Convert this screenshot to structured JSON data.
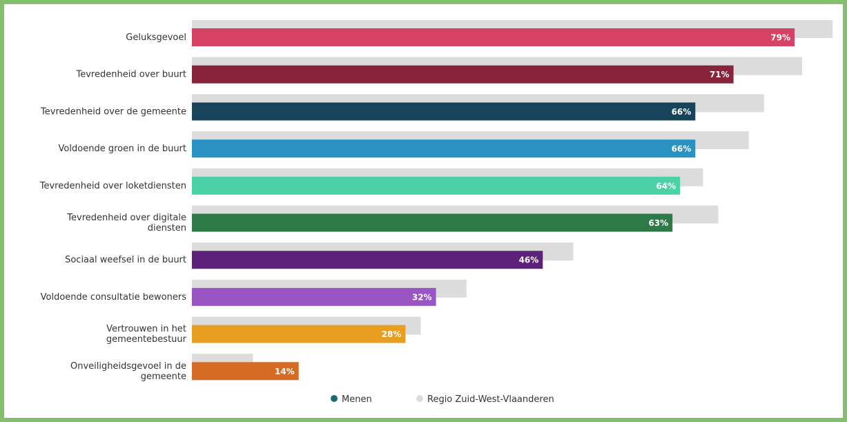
{
  "chart_data": {
    "type": "bar",
    "orientation": "horizontal",
    "categories": [
      [
        "Geluksgevoel"
      ],
      [
        "Tevredenheid over buurt"
      ],
      [
        "Tevredenheid over de gemeente"
      ],
      [
        "Voldoende groen in de buurt"
      ],
      [
        "Tevredenheid over loketdiensten"
      ],
      [
        "Tevredenheid over digitale",
        "diensten"
      ],
      [
        "Sociaal weefsel in de buurt"
      ],
      [
        "Voldoende consultatie bewoners"
      ],
      [
        "Vertrouwen in het",
        "gemeentebestuur"
      ],
      [
        "Onveiligheidsgevoel in de",
        "gemeente"
      ]
    ],
    "series": [
      {
        "name": "Menen",
        "values": [
          79,
          71,
          66,
          66,
          64,
          63,
          46,
          32,
          28,
          14
        ],
        "value_labels": [
          "79%",
          "71%",
          "66%",
          "66%",
          "64%",
          "63%",
          "46%",
          "32%",
          "28%",
          "14%"
        ],
        "colors": [
          "#d64264",
          "#87233a",
          "#17435b",
          "#2a92c2",
          "#4bd1a6",
          "#2d7a47",
          "#5c2279",
          "#9a55c4",
          "#e89f21",
          "#d46c25"
        ]
      },
      {
        "name": "Regio Zuid-West-Vlaanderen",
        "values": [
          84,
          80,
          75,
          73,
          67,
          69,
          50,
          36,
          30,
          8
        ],
        "color": "#dcdcdc"
      }
    ],
    "xlim": [
      0,
      100
    ],
    "legend": {
      "placement": "bottom-center",
      "items": [
        {
          "label": "Menen",
          "color": "#1b6b73"
        },
        {
          "label": "Regio Zuid-West-Vlaanderen",
          "color": "#dcdcdc"
        }
      ]
    },
    "grid": false
  }
}
